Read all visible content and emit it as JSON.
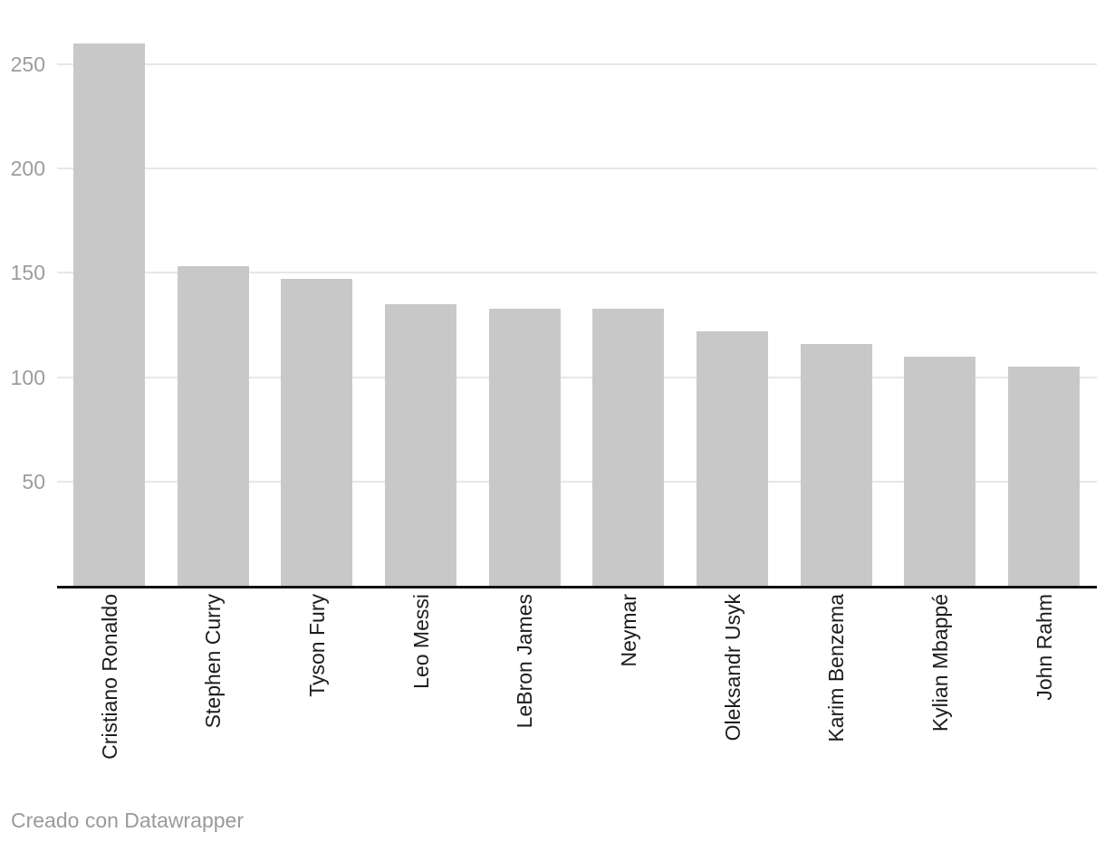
{
  "footer": {
    "text": "Creado con Datawrapper"
  },
  "chart_data": {
    "type": "bar",
    "categories": [
      "Cristiano Ronaldo",
      "Stephen Curry",
      "Tyson Fury",
      "Leo Messi",
      "LeBron James",
      "Neymar",
      "Oleksandr Usyk",
      "Karim Benzema",
      "Kylian Mbappé",
      "John Rahm"
    ],
    "values": [
      260,
      153,
      147,
      135,
      133,
      133,
      122,
      116,
      110,
      105
    ],
    "xlabel": "",
    "ylabel": "",
    "ylim": [
      0,
      260
    ],
    "yticks": [
      50,
      100,
      150,
      200,
      250
    ],
    "grid": "horizontal",
    "legend": "none",
    "colors": {
      "bar": "#c8c8c8",
      "gridline": "#e7e7e7",
      "axis_line": "#131313",
      "tick_label": "#9c9c9c",
      "category_label": "#1d1d1d",
      "attribution": "#9a9a9a",
      "background": "#ffffff"
    }
  }
}
